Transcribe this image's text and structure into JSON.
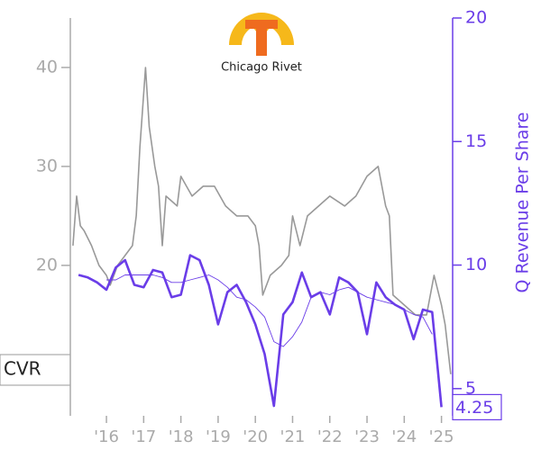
{
  "chart_data": {
    "type": "line",
    "ticker": "CVR",
    "logo_text": "Chicago Rivet",
    "y2_label": "Q Revenue Per Share",
    "xlim": [
      2015.03,
      2025.3
    ],
    "xticks": [
      {
        "value": 2016,
        "label": "'16"
      },
      {
        "value": 2017,
        "label": "'17"
      },
      {
        "value": 2018,
        "label": "'18"
      },
      {
        "value": 2019,
        "label": "'19"
      },
      {
        "value": 2020,
        "label": "'20"
      },
      {
        "value": 2021,
        "label": "'21"
      },
      {
        "value": 2022,
        "label": "'22"
      },
      {
        "value": 2023,
        "label": "'23"
      },
      {
        "value": 2024,
        "label": "'24"
      },
      {
        "value": 2025,
        "label": "'25"
      }
    ],
    "ylim": [
      4.8,
      45
    ],
    "yticks": [
      20,
      30,
      40
    ],
    "y2lim": [
      3.9,
      20
    ],
    "y2ticks": [
      5,
      10,
      15,
      20
    ],
    "series": [
      {
        "color": "#999999",
        "line_width": 1.6,
        "x": [
          2015.1,
          2015.2,
          2015.3,
          2015.4,
          2015.6,
          2015.8,
          2016.0,
          2016.1,
          2016.3,
          2016.5,
          2016.7,
          2016.8,
          2016.9,
          2017.05,
          2017.15,
          2017.3,
          2017.4,
          2017.5,
          2017.6,
          2017.9,
          2018.0,
          2018.3,
          2018.6,
          2018.9,
          2019.2,
          2019.5,
          2019.8,
          2020.0,
          2020.1,
          2020.2,
          2020.4,
          2020.7,
          2020.9,
          2021.0,
          2021.2,
          2021.4,
          2021.7,
          2022.0,
          2022.4,
          2022.7,
          2023.0,
          2023.3,
          2023.5,
          2023.6,
          2023.7,
          2024.0,
          2024.3,
          2024.6,
          2024.8,
          2025.0,
          2025.1,
          2025.25
        ],
        "values": [
          22,
          27,
          24,
          23.5,
          22,
          20,
          19,
          18,
          20,
          21,
          22,
          25,
          32,
          40,
          34,
          30,
          28,
          22,
          27,
          26,
          29,
          27,
          28,
          28,
          26,
          25,
          25,
          24,
          22,
          17,
          19,
          20,
          21,
          25,
          22,
          25,
          26,
          27,
          26,
          27,
          29,
          30,
          26,
          25,
          17,
          16,
          15,
          15,
          19,
          16,
          14,
          9
        ],
        "axis": "y"
      },
      {
        "color": "#6a3de8",
        "line_width": 2.6,
        "x": [
          2015.25,
          2015.5,
          2015.75,
          2016.0,
          2016.25,
          2016.5,
          2016.75,
          2017.0,
          2017.25,
          2017.5,
          2017.75,
          2018.0,
          2018.25,
          2018.5,
          2018.75,
          2019.0,
          2019.25,
          2019.5,
          2019.75,
          2020.0,
          2020.25,
          2020.5,
          2020.75,
          2021.0,
          2021.25,
          2021.5,
          2021.75,
          2022.0,
          2022.25,
          2022.5,
          2022.75,
          2023.0,
          2023.25,
          2023.5,
          2023.75,
          2024.0,
          2024.25,
          2024.5,
          2024.75,
          2025.0
        ],
        "values": [
          9.6,
          9.5,
          9.3,
          9.0,
          9.9,
          10.2,
          9.2,
          9.1,
          9.8,
          9.7,
          8.7,
          8.8,
          10.4,
          10.2,
          9.2,
          7.6,
          8.9,
          9.2,
          8.5,
          7.6,
          6.4,
          4.3,
          8.0,
          8.5,
          9.7,
          8.7,
          8.9,
          8.0,
          9.5,
          9.3,
          8.9,
          7.2,
          9.3,
          8.7,
          8.4,
          8.2,
          7.0,
          8.2,
          8.1,
          4.25
        ],
        "axis": "y2"
      },
      {
        "color": "#6a3de8",
        "line_width": 0.9,
        "x": [
          2015.25,
          2015.5,
          2015.75,
          2016.0,
          2016.25,
          2016.5,
          2016.75,
          2017.0,
          2017.25,
          2017.5,
          2017.75,
          2018.0,
          2018.25,
          2018.5,
          2018.75,
          2019.0,
          2019.25,
          2019.5,
          2019.75,
          2020.0,
          2020.25,
          2020.5,
          2020.75,
          2021.0,
          2021.25,
          2021.5,
          2021.75,
          2022.0,
          2022.25,
          2022.5,
          2022.75,
          2023.0,
          2023.25,
          2023.5,
          2023.75,
          2024.0,
          2024.25,
          2024.5,
          2024.75,
          2025.0
        ],
        "values": [
          null,
          null,
          null,
          9.4,
          9.4,
          9.6,
          9.6,
          9.6,
          9.6,
          9.5,
          9.3,
          9.3,
          9.4,
          9.5,
          9.6,
          9.4,
          9.1,
          8.7,
          8.6,
          8.3,
          7.9,
          6.9,
          6.7,
          7.1,
          7.7,
          8.7,
          8.9,
          8.8,
          9.0,
          9.1,
          8.9,
          8.7,
          8.6,
          8.5,
          8.4,
          8.2,
          8.0,
          7.9,
          7.2,
          null
        ],
        "axis": "y2"
      }
    ]
  }
}
